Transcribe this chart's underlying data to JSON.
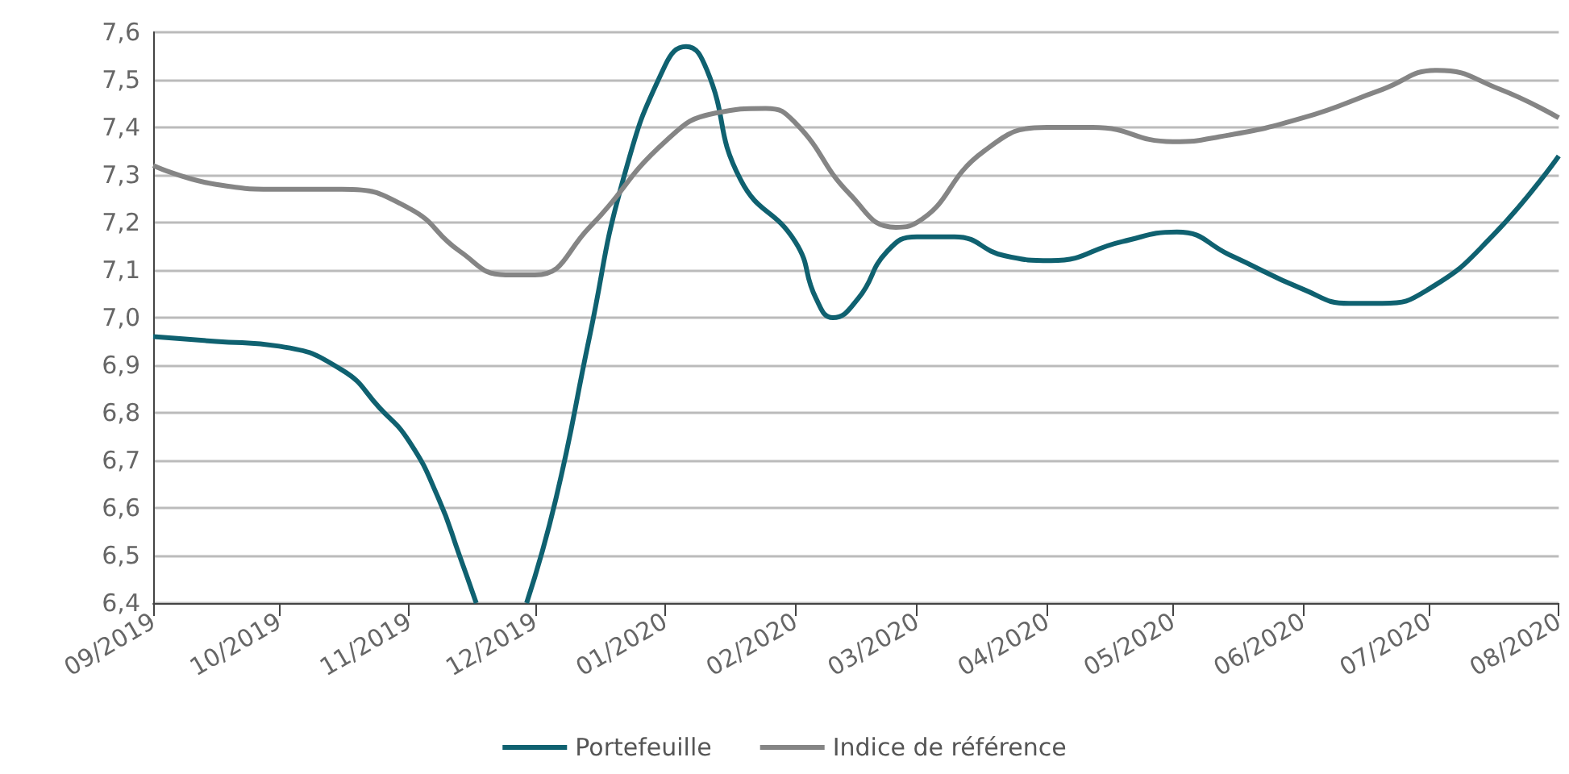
{
  "chart_data": {
    "type": "line",
    "xlim": [
      "2019-09-01",
      "2020-08-01"
    ],
    "xticks": [
      {
        "value": "2019-09-01",
        "label": "09/2019"
      },
      {
        "value": "2019-10-01",
        "label": "10/2019"
      },
      {
        "value": "2019-11-01",
        "label": "11/2019"
      },
      {
        "value": "2019-12-01",
        "label": "12/2019"
      },
      {
        "value": "2020-01-01",
        "label": "01/2020"
      },
      {
        "value": "2020-02-01",
        "label": "02/2020"
      },
      {
        "value": "2020-03-01",
        "label": "03/2020"
      },
      {
        "value": "2020-04-01",
        "label": "04/2020"
      },
      {
        "value": "2020-05-01",
        "label": "05/2020"
      },
      {
        "value": "2020-06-01",
        "label": "06/2020"
      },
      {
        "value": "2020-07-01",
        "label": "07/2020"
      },
      {
        "value": "2020-08-01",
        "label": "08/2020"
      }
    ],
    "ylim": [
      6.4,
      7.6
    ],
    "yticks": [
      {
        "value": 6.4,
        "label": "6,4"
      },
      {
        "value": 6.5,
        "label": "6,5"
      },
      {
        "value": 6.6,
        "label": "6,6"
      },
      {
        "value": 6.7,
        "label": "6,7"
      },
      {
        "value": 6.8,
        "label": "6,8"
      },
      {
        "value": 6.9,
        "label": "6,9"
      },
      {
        "value": 7.0,
        "label": "7,0"
      },
      {
        "value": 7.1,
        "label": "7,1"
      },
      {
        "value": 7.2,
        "label": "7,2"
      },
      {
        "value": 7.3,
        "label": "7,3"
      },
      {
        "value": 7.4,
        "label": "7,4"
      },
      {
        "value": 7.5,
        "label": "7,5"
      },
      {
        "value": 7.6,
        "label": "7,6"
      }
    ],
    "grid": "y",
    "legend": "bottom",
    "series": [
      {
        "name": "Portefeuille",
        "color": "#0f6170",
        "x": [
          "2019-09-01",
          "2019-09-16",
          "2019-10-01",
          "2019-10-16",
          "2019-10-25",
          "2019-11-01",
          "2019-11-08",
          "2019-11-13",
          "2019-11-17",
          "2019-11-23",
          "2019-11-29",
          "2019-12-06",
          "2019-12-14",
          "2019-12-22",
          "2020-01-01",
          "2020-01-06",
          "2020-01-11",
          "2020-01-19",
          "2020-02-01",
          "2020-02-06",
          "2020-02-10",
          "2020-02-16",
          "2020-02-23",
          "2020-03-01",
          "2020-03-10",
          "2020-03-22",
          "2020-04-02",
          "2020-04-19",
          "2020-05-02",
          "2020-05-15",
          "2020-06-01",
          "2020-06-12",
          "2020-06-20",
          "2020-07-01",
          "2020-07-16",
          "2020-08-01"
        ],
        "values": [
          6.96,
          6.95,
          6.94,
          6.89,
          6.81,
          6.74,
          6.62,
          6.5,
          6.4,
          null,
          6.4,
          6.62,
          6.96,
          7.29,
          7.53,
          7.57,
          7.52,
          7.29,
          7.16,
          7.04,
          7.0,
          7.04,
          7.14,
          7.17,
          7.17,
          7.13,
          7.12,
          7.16,
          7.18,
          7.13,
          7.06,
          7.03,
          7.03,
          7.06,
          7.17,
          7.34
        ]
      },
      {
        "name": "Indice de référence",
        "color": "#858585",
        "x": [
          "2019-09-01",
          "2019-09-16",
          "2019-10-01",
          "2019-10-16",
          "2019-11-01",
          "2019-11-13",
          "2019-11-24",
          "2019-12-01",
          "2019-12-14",
          "2020-01-01",
          "2020-01-13",
          "2020-01-25",
          "2020-02-01",
          "2020-02-14",
          "2020-02-25",
          "2020-03-01",
          "2020-03-17",
          "2020-04-01",
          "2020-04-12",
          "2020-05-01",
          "2020-05-12",
          "2020-06-01",
          "2020-06-20",
          "2020-07-03",
          "2020-07-18",
          "2020-08-01"
        ],
        "values": [
          7.32,
          7.28,
          7.27,
          7.27,
          7.23,
          7.14,
          7.09,
          7.09,
          7.19,
          7.37,
          7.43,
          7.44,
          7.41,
          7.26,
          7.19,
          7.2,
          7.35,
          7.4,
          7.4,
          7.37,
          7.38,
          7.42,
          7.48,
          7.52,
          7.48,
          7.42
        ]
      }
    ]
  }
}
